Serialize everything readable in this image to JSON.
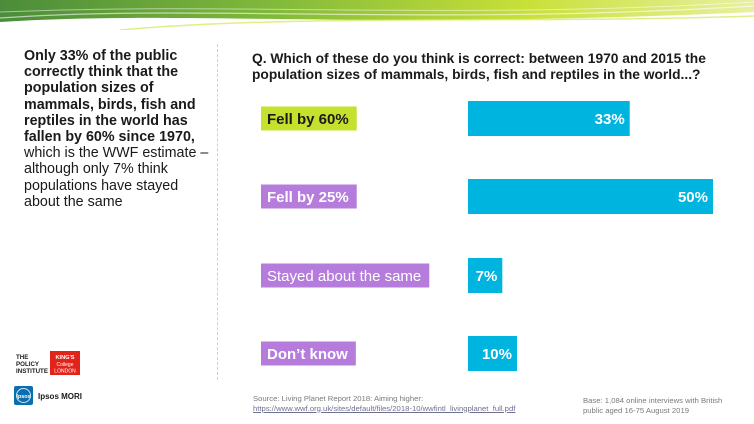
{
  "summary": {
    "bold_text": "Only 33% of the public correctly think that the population sizes of mammals, birds, fish and reptiles in the world has fallen by 60% since 1970,",
    "normal_text": "which is the WWF estimate – although only 7% think populations have stayed about the same"
  },
  "chart_data": {
    "type": "bar",
    "orientation": "horizontal",
    "title": "Q. Which of these do you think is correct: between 1970 and 2015 the population sizes of mammals, birds, fish and reptiles in the world...?",
    "categories": [
      "Fell by 60%",
      "Fell by 25%",
      "Stayed about the same",
      "Don’t know"
    ],
    "values": [
      33,
      50,
      7,
      10
    ],
    "value_labels": [
      "33%",
      "50%",
      "7%",
      "10%"
    ],
    "unit": "%",
    "xlim": [
      0,
      50
    ],
    "grid": false,
    "legend": "none",
    "colors": {
      "bar": "#00b4e0",
      "label_correct_bg": "#c6e02e",
      "label_correct_text": "#1a1a1a",
      "label_other_bg": "#b57cdc",
      "label_other_text": "#ffffff"
    }
  },
  "logos": {
    "policy_institute": [
      "THE",
      "POLICY",
      "INSTITUTE"
    ],
    "kings_college": [
      "KING'S",
      "College",
      "LONDON"
    ],
    "ipsos_mark": "Ipsos",
    "ipsos_mori": "Ipsos MORI"
  },
  "footer": {
    "source_text": "Source: Living Planet Report 2018: Aiming higher:",
    "source_link": "https://www.wwf.org.uk/sites/default/files/2018-10/wwfintl_livingplanet_full.pdf",
    "base_text": "Base: 1,084 online interviews with British public aged 16-75 August 2019"
  }
}
